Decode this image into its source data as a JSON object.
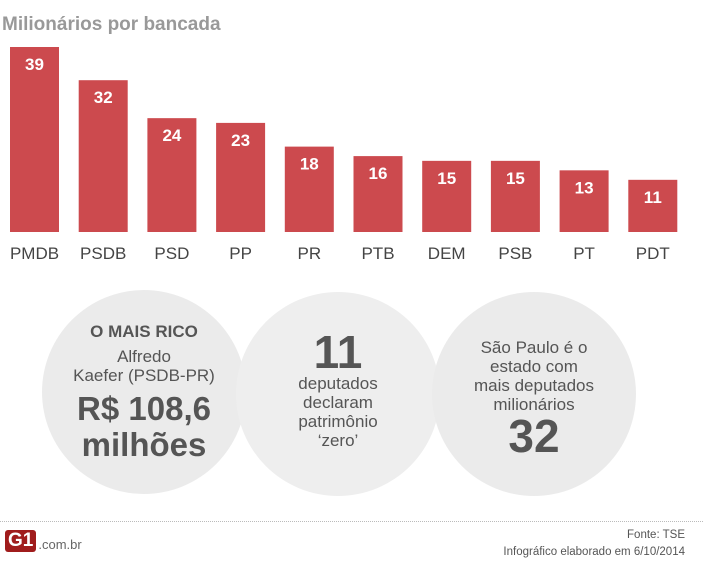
{
  "chart_data": {
    "type": "bar",
    "title": "Milionários por bancada",
    "categories": [
      "PMDB",
      "PSDB",
      "PSD",
      "PP",
      "PR",
      "PTB",
      "DEM",
      "PSB",
      "PT",
      "PDT"
    ],
    "values": [
      39,
      32,
      24,
      23,
      18,
      16,
      15,
      15,
      13,
      11
    ],
    "ylim": [
      0,
      39
    ],
    "grid": false,
    "bar_color": "#cc4a4e"
  },
  "facts": {
    "richest": {
      "heading": "O MAIS RICO",
      "name_line1": "Alfredo",
      "name_line2": "Kaefer (PSDB-PR)",
      "amount": "R$ 108,6",
      "unit": "milhões"
    },
    "zero": {
      "number": "11",
      "l1": "deputados",
      "l2": "declaram",
      "l3": "patrimônio",
      "l4": "‘zero’"
    },
    "state": {
      "l1": "São Paulo é o",
      "l2": "estado com",
      "l3": "mais deputados",
      "l4": "milionários",
      "number": "32"
    }
  },
  "footer": {
    "logo": "G1",
    "domain": ".com.br",
    "source": "Fonte: TSE",
    "date": "Infográfico elaborado em 6/10/2014"
  }
}
